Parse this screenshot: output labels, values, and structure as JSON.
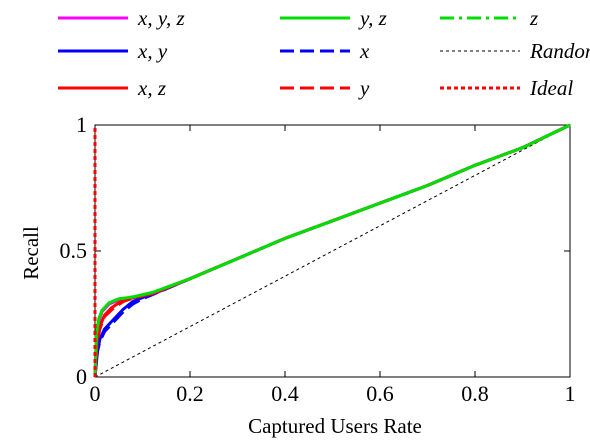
{
  "chart_data": {
    "type": "line",
    "xlabel": "Captured Users Rate",
    "ylabel": "Recall",
    "xlim": [
      0,
      1
    ],
    "ylim": [
      0,
      1
    ],
    "x_ticks": [
      0,
      0.2,
      0.4,
      0.6,
      0.8,
      1
    ],
    "x_tick_labels": [
      "0",
      "0.2",
      "0.4",
      "0.6",
      "0.8",
      "1"
    ],
    "y_ticks": [
      0,
      0.5,
      1
    ],
    "y_tick_labels": [
      "0",
      "0.5",
      "1"
    ],
    "grid": false,
    "legend_position": "top, above plot, three columns",
    "series": [
      {
        "name": "x, y, z",
        "color": "#ff00ff",
        "style": "solid",
        "points": [
          [
            0,
            0
          ],
          [
            0.003,
            0.16
          ],
          [
            0.008,
            0.22
          ],
          [
            0.015,
            0.26
          ],
          [
            0.03,
            0.29
          ],
          [
            0.05,
            0.305
          ],
          [
            0.08,
            0.315
          ],
          [
            0.12,
            0.33
          ],
          [
            0.2,
            0.39
          ],
          [
            0.3,
            0.47
          ],
          [
            0.4,
            0.55
          ],
          [
            0.5,
            0.62
          ],
          [
            0.6,
            0.69
          ],
          [
            0.7,
            0.76
          ],
          [
            0.8,
            0.84
          ],
          [
            0.9,
            0.91
          ],
          [
            1,
            1
          ]
        ]
      },
      {
        "name": "x, y",
        "color": "#0000ff",
        "style": "solid",
        "points": [
          [
            0,
            0
          ],
          [
            0.005,
            0.1
          ],
          [
            0.01,
            0.15
          ],
          [
            0.02,
            0.19
          ],
          [
            0.04,
            0.23
          ],
          [
            0.06,
            0.27
          ],
          [
            0.08,
            0.3
          ],
          [
            0.1,
            0.315
          ],
          [
            0.15,
            0.35
          ],
          [
            0.2,
            0.39
          ],
          [
            0.3,
            0.47
          ],
          [
            0.4,
            0.55
          ],
          [
            0.5,
            0.62
          ],
          [
            0.6,
            0.69
          ],
          [
            0.7,
            0.76
          ],
          [
            0.8,
            0.84
          ],
          [
            0.9,
            0.91
          ],
          [
            1,
            1
          ]
        ]
      },
      {
        "name": "x, z",
        "color": "#ff0000",
        "style": "solid",
        "points": [
          [
            0,
            0
          ],
          [
            0.004,
            0.14
          ],
          [
            0.01,
            0.2
          ],
          [
            0.02,
            0.245
          ],
          [
            0.035,
            0.275
          ],
          [
            0.055,
            0.3
          ],
          [
            0.08,
            0.315
          ],
          [
            0.12,
            0.33
          ],
          [
            0.2,
            0.39
          ],
          [
            0.3,
            0.47
          ],
          [
            0.4,
            0.55
          ],
          [
            0.5,
            0.62
          ],
          [
            0.6,
            0.69
          ],
          [
            0.7,
            0.76
          ],
          [
            0.8,
            0.84
          ],
          [
            0.9,
            0.91
          ],
          [
            1,
            1
          ]
        ]
      },
      {
        "name": "y, z",
        "color": "#00dd00",
        "style": "solid",
        "points": [
          [
            0,
            0
          ],
          [
            0.003,
            0.17
          ],
          [
            0.008,
            0.23
          ],
          [
            0.015,
            0.265
          ],
          [
            0.03,
            0.295
          ],
          [
            0.05,
            0.31
          ],
          [
            0.08,
            0.318
          ],
          [
            0.12,
            0.335
          ],
          [
            0.2,
            0.39
          ],
          [
            0.3,
            0.47
          ],
          [
            0.4,
            0.55
          ],
          [
            0.5,
            0.62
          ],
          [
            0.6,
            0.69
          ],
          [
            0.7,
            0.76
          ],
          [
            0.8,
            0.84
          ],
          [
            0.9,
            0.91
          ],
          [
            1,
            1
          ]
        ]
      },
      {
        "name": "x",
        "color": "#0000ff",
        "style": "dashed",
        "points": [
          [
            0,
            0
          ],
          [
            0.005,
            0.1
          ],
          [
            0.01,
            0.14
          ],
          [
            0.02,
            0.18
          ],
          [
            0.04,
            0.22
          ],
          [
            0.06,
            0.26
          ],
          [
            0.08,
            0.29
          ],
          [
            0.1,
            0.31
          ],
          [
            0.15,
            0.35
          ],
          [
            0.2,
            0.39
          ],
          [
            0.3,
            0.47
          ],
          [
            0.4,
            0.55
          ],
          [
            0.5,
            0.62
          ],
          [
            0.6,
            0.69
          ],
          [
            0.7,
            0.76
          ],
          [
            0.8,
            0.84
          ],
          [
            0.9,
            0.91
          ],
          [
            1,
            1
          ]
        ]
      },
      {
        "name": "y",
        "color": "#ff0000",
        "style": "dashed",
        "points": [
          [
            0,
            0
          ],
          [
            0.004,
            0.13
          ],
          [
            0.01,
            0.19
          ],
          [
            0.02,
            0.24
          ],
          [
            0.04,
            0.275
          ],
          [
            0.06,
            0.3
          ],
          [
            0.08,
            0.313
          ],
          [
            0.12,
            0.33
          ],
          [
            0.2,
            0.39
          ],
          [
            0.3,
            0.47
          ],
          [
            0.4,
            0.55
          ],
          [
            0.5,
            0.62
          ],
          [
            0.6,
            0.69
          ],
          [
            0.7,
            0.76
          ],
          [
            0.8,
            0.84
          ],
          [
            0.9,
            0.91
          ],
          [
            1,
            1
          ]
        ]
      },
      {
        "name": "z",
        "color": "#00dd00",
        "style": "dashdot",
        "points": [
          [
            0,
            0
          ],
          [
            0.003,
            0.17
          ],
          [
            0.008,
            0.23
          ],
          [
            0.015,
            0.265
          ],
          [
            0.03,
            0.295
          ],
          [
            0.05,
            0.31
          ],
          [
            0.08,
            0.318
          ],
          [
            0.12,
            0.335
          ],
          [
            0.2,
            0.39
          ],
          [
            0.3,
            0.47
          ],
          [
            0.4,
            0.55
          ],
          [
            0.5,
            0.62
          ],
          [
            0.6,
            0.69
          ],
          [
            0.7,
            0.76
          ],
          [
            0.8,
            0.84
          ],
          [
            0.9,
            0.91
          ],
          [
            1,
            1
          ]
        ]
      },
      {
        "name": "Random",
        "color": "#000000",
        "style": "dotted-thin",
        "points": [
          [
            0,
            0
          ],
          [
            1,
            1
          ]
        ]
      },
      {
        "name": "Ideal",
        "color": "#ff0000",
        "style": "dotted-thick",
        "points": [
          [
            0,
            0
          ],
          [
            0.0,
            1
          ]
        ]
      }
    ]
  }
}
